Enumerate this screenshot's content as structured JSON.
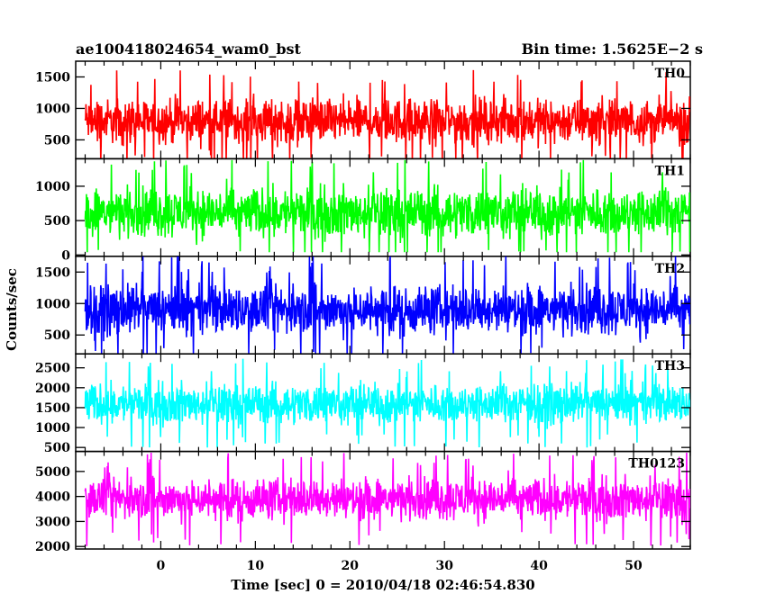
{
  "chart_data": {
    "type": "line",
    "title_left": "ae100418024654_wam0_bst",
    "title_right": "Bin time: 1.5625E−2 s",
    "xlabel": "Time [sec] 0 = 2010/04/18 02:46:54.830",
    "ylabel": "Counts/sec",
    "xlim": [
      -9,
      56
    ],
    "x_data_range": [
      -8,
      56
    ],
    "xticks": [
      0,
      10,
      20,
      30,
      40,
      50
    ],
    "bin_time": 0.015625,
    "panels": [
      {
        "name": "TH0",
        "color": "#ff0000",
        "ylim": [
          200,
          1750
        ],
        "yticks": [
          500,
          1000,
          1500
        ],
        "mean": 800,
        "spread": 300,
        "min": 150,
        "max": 1700
      },
      {
        "name": "TH1",
        "color": "#00ff00",
        "ylim": [
          -20,
          1400
        ],
        "yticks": [
          0,
          500,
          1000
        ],
        "mean": 620,
        "spread": 300,
        "min": 40,
        "max": 1380
      },
      {
        "name": "TH2",
        "color": "#0000ff",
        "ylim": [
          200,
          1750
        ],
        "yticks": [
          500,
          1000,
          1500
        ],
        "mean": 900,
        "spread": 330,
        "min": 200,
        "max": 1750
      },
      {
        "name": "TH3",
        "color": "#00ffff",
        "ylim": [
          400,
          2850
        ],
        "yticks": [
          500,
          1000,
          1500,
          2000,
          2500
        ],
        "mean": 1600,
        "spread": 420,
        "min": 500,
        "max": 2800
      },
      {
        "name": "TH0123",
        "color": "#ff00ff",
        "ylim": [
          1900,
          5800
        ],
        "yticks": [
          2000,
          3000,
          4000,
          5000
        ],
        "mean": 3900,
        "spread": 700,
        "min": 2000,
        "max": 5750
      }
    ]
  }
}
